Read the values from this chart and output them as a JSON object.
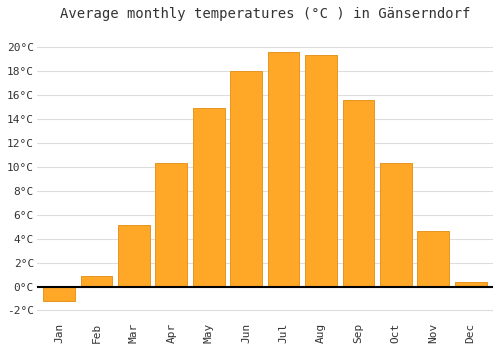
{
  "title": "Average monthly temperatures (°C ) in Gänserndorf",
  "months": [
    "Jan",
    "Feb",
    "Mar",
    "Apr",
    "May",
    "Jun",
    "Jul",
    "Aug",
    "Sep",
    "Oct",
    "Nov",
    "Dec"
  ],
  "temperatures": [
    -1.2,
    0.9,
    5.1,
    10.3,
    14.9,
    18.0,
    19.6,
    19.3,
    15.6,
    10.3,
    4.6,
    0.4
  ],
  "bar_color": "#FFA726",
  "bar_edge_color": "#E69520",
  "ylim": [
    -2.8,
    21.5
  ],
  "yticks": [
    -2,
    0,
    2,
    4,
    6,
    8,
    10,
    12,
    14,
    16,
    18,
    20
  ],
  "ytick_labels": [
    "-2°C",
    "0°C",
    "2°C",
    "4°C",
    "6°C",
    "8°C",
    "10°C",
    "12°C",
    "14°C",
    "16°C",
    "18°C",
    "20°C"
  ],
  "background_color": "#ffffff",
  "grid_color": "#dddddd",
  "title_fontsize": 10,
  "tick_fontsize": 8,
  "bar_width": 0.85
}
